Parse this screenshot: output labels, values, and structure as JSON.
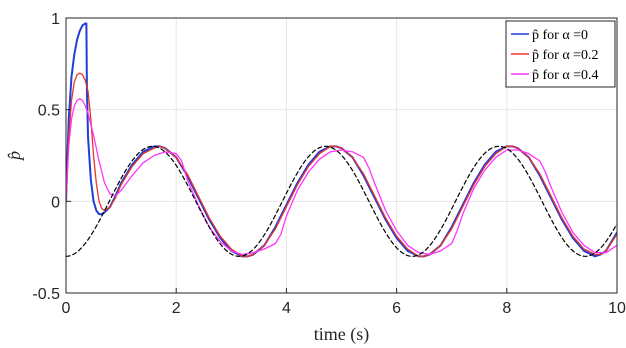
{
  "chart_data": {
    "type": "line",
    "xlabel": "time (s)",
    "ylabel": "p̂",
    "xlim": [
      0,
      10
    ],
    "ylim": [
      -0.5,
      1
    ],
    "xticks": [
      0,
      2,
      4,
      6,
      8,
      10
    ],
    "yticks": [
      -0.5,
      0,
      0.5,
      1
    ],
    "xtick_labels": [
      "0",
      "2",
      "4",
      "6",
      "8",
      "10"
    ],
    "ytick_labels": [
      "-0.5",
      "0",
      "0.5",
      "1"
    ],
    "grid": true,
    "legend_position": "top-right",
    "series": [
      {
        "name": "p̂ for α =0",
        "legend_label": "p̂ for α =0",
        "color": "#1f3fd6",
        "style": "solid",
        "points": [
          [
            0,
            0
          ],
          [
            0.05,
            0.45
          ],
          [
            0.1,
            0.68
          ],
          [
            0.15,
            0.8
          ],
          [
            0.2,
            0.88
          ],
          [
            0.25,
            0.93
          ],
          [
            0.3,
            0.96
          ],
          [
            0.35,
            0.97
          ],
          [
            0.37,
            0.97
          ],
          [
            0.38,
            0.6
          ],
          [
            0.4,
            0.35
          ],
          [
            0.45,
            0.12
          ],
          [
            0.5,
            0.0
          ],
          [
            0.55,
            -0.05
          ],
          [
            0.6,
            -0.07
          ],
          [
            0.65,
            -0.07
          ],
          [
            0.7,
            -0.06
          ],
          [
            0.8,
            -0.03
          ],
          [
            0.9,
            0.03
          ],
          [
            1.0,
            0.1
          ],
          [
            1.2,
            0.2
          ],
          [
            1.4,
            0.27
          ],
          [
            1.6,
            0.3
          ],
          [
            1.7,
            0.3
          ],
          [
            1.8,
            0.29
          ],
          [
            2.0,
            0.24
          ],
          [
            2.2,
            0.14
          ],
          [
            2.4,
            0.02
          ],
          [
            2.6,
            -0.1
          ],
          [
            2.8,
            -0.2
          ],
          [
            3.0,
            -0.27
          ],
          [
            3.2,
            -0.3
          ],
          [
            3.3,
            -0.3
          ],
          [
            3.4,
            -0.29
          ],
          [
            3.6,
            -0.24
          ],
          [
            3.8,
            -0.14
          ],
          [
            4.0,
            -0.02
          ],
          [
            4.2,
            0.1
          ],
          [
            4.4,
            0.2
          ],
          [
            4.6,
            0.27
          ],
          [
            4.8,
            0.3
          ],
          [
            4.9,
            0.3
          ],
          [
            5.0,
            0.29
          ],
          [
            5.2,
            0.24
          ],
          [
            5.4,
            0.14
          ],
          [
            5.6,
            0.02
          ],
          [
            5.8,
            -0.1
          ],
          [
            6.0,
            -0.2
          ],
          [
            6.2,
            -0.27
          ],
          [
            6.4,
            -0.3
          ],
          [
            6.5,
            -0.3
          ],
          [
            6.6,
            -0.29
          ],
          [
            6.8,
            -0.24
          ],
          [
            7.0,
            -0.14
          ],
          [
            7.2,
            -0.02
          ],
          [
            7.4,
            0.1
          ],
          [
            7.6,
            0.2
          ],
          [
            7.8,
            0.27
          ],
          [
            8.0,
            0.3
          ],
          [
            8.1,
            0.3
          ],
          [
            8.2,
            0.29
          ],
          [
            8.4,
            0.24
          ],
          [
            8.6,
            0.14
          ],
          [
            8.8,
            0.02
          ],
          [
            9.0,
            -0.1
          ],
          [
            9.2,
            -0.2
          ],
          [
            9.4,
            -0.27
          ],
          [
            9.6,
            -0.3
          ],
          [
            9.7,
            -0.29
          ],
          [
            9.8,
            -0.27
          ],
          [
            10.0,
            -0.17
          ]
        ]
      },
      {
        "name": "p̂ for α =0.2",
        "legend_label": "p̂ for α =0.2",
        "color": "#e8342a",
        "style": "solid",
        "points": [
          [
            0,
            0
          ],
          [
            0.05,
            0.35
          ],
          [
            0.1,
            0.55
          ],
          [
            0.15,
            0.65
          ],
          [
            0.2,
            0.69
          ],
          [
            0.25,
            0.7
          ],
          [
            0.3,
            0.69
          ],
          [
            0.35,
            0.66
          ],
          [
            0.4,
            0.6
          ],
          [
            0.45,
            0.45
          ],
          [
            0.5,
            0.25
          ],
          [
            0.55,
            0.1
          ],
          [
            0.6,
            0.0
          ],
          [
            0.65,
            -0.04
          ],
          [
            0.7,
            -0.05
          ],
          [
            0.8,
            -0.03
          ],
          [
            0.9,
            0.02
          ],
          [
            1.0,
            0.09
          ],
          [
            1.2,
            0.19
          ],
          [
            1.4,
            0.26
          ],
          [
            1.6,
            0.29
          ],
          [
            1.7,
            0.3
          ],
          [
            1.8,
            0.29
          ],
          [
            2.0,
            0.24
          ],
          [
            2.2,
            0.15
          ],
          [
            2.4,
            0.03
          ],
          [
            2.6,
            -0.09
          ],
          [
            2.8,
            -0.19
          ],
          [
            3.0,
            -0.26
          ],
          [
            3.2,
            -0.3
          ],
          [
            3.3,
            -0.3
          ],
          [
            3.4,
            -0.29
          ],
          [
            3.6,
            -0.24
          ],
          [
            3.8,
            -0.15
          ],
          [
            4.0,
            -0.03
          ],
          [
            4.2,
            0.09
          ],
          [
            4.4,
            0.19
          ],
          [
            4.6,
            0.26
          ],
          [
            4.8,
            0.3
          ],
          [
            4.9,
            0.3
          ],
          [
            5.0,
            0.29
          ],
          [
            5.2,
            0.24
          ],
          [
            5.4,
            0.15
          ],
          [
            5.6,
            0.03
          ],
          [
            5.8,
            -0.09
          ],
          [
            6.0,
            -0.19
          ],
          [
            6.2,
            -0.26
          ],
          [
            6.4,
            -0.3
          ],
          [
            6.5,
            -0.3
          ],
          [
            6.6,
            -0.29
          ],
          [
            6.8,
            -0.24
          ],
          [
            7.0,
            -0.15
          ],
          [
            7.2,
            -0.03
          ],
          [
            7.4,
            0.09
          ],
          [
            7.6,
            0.19
          ],
          [
            7.8,
            0.26
          ],
          [
            8.0,
            0.3
          ],
          [
            8.1,
            0.3
          ],
          [
            8.2,
            0.29
          ],
          [
            8.4,
            0.24
          ],
          [
            8.6,
            0.15
          ],
          [
            8.8,
            0.03
          ],
          [
            9.0,
            -0.09
          ],
          [
            9.2,
            -0.19
          ],
          [
            9.4,
            -0.26
          ],
          [
            9.6,
            -0.29
          ],
          [
            9.7,
            -0.29
          ],
          [
            9.8,
            -0.27
          ],
          [
            10.0,
            -0.18
          ]
        ]
      },
      {
        "name": "p̂ for α =0.4",
        "legend_label": "p̂ for α =0.4",
        "color": "#ff33ff",
        "style": "solid",
        "points": [
          [
            0,
            0
          ],
          [
            0.05,
            0.3
          ],
          [
            0.1,
            0.45
          ],
          [
            0.15,
            0.52
          ],
          [
            0.2,
            0.55
          ],
          [
            0.25,
            0.56
          ],
          [
            0.3,
            0.55
          ],
          [
            0.35,
            0.52
          ],
          [
            0.4,
            0.48
          ],
          [
            0.5,
            0.36
          ],
          [
            0.6,
            0.22
          ],
          [
            0.7,
            0.1
          ],
          [
            0.8,
            0.04
          ],
          [
            0.9,
            0.03
          ],
          [
            1.0,
            0.06
          ],
          [
            1.2,
            0.14
          ],
          [
            1.4,
            0.21
          ],
          [
            1.6,
            0.25
          ],
          [
            1.8,
            0.27
          ],
          [
            2.0,
            0.26
          ],
          [
            2.1,
            0.22
          ],
          [
            2.2,
            0.12
          ],
          [
            2.4,
            -0.02
          ],
          [
            2.6,
            -0.14
          ],
          [
            2.8,
            -0.22
          ],
          [
            3.0,
            -0.27
          ],
          [
            3.2,
            -0.29
          ],
          [
            3.4,
            -0.28
          ],
          [
            3.6,
            -0.26
          ],
          [
            3.8,
            -0.23
          ],
          [
            3.9,
            -0.18
          ],
          [
            4.0,
            -0.08
          ],
          [
            4.2,
            0.06
          ],
          [
            4.4,
            0.16
          ],
          [
            4.6,
            0.23
          ],
          [
            4.8,
            0.27
          ],
          [
            5.0,
            0.28
          ],
          [
            5.2,
            0.27
          ],
          [
            5.4,
            0.24
          ],
          [
            5.5,
            0.18
          ],
          [
            5.6,
            0.1
          ],
          [
            5.8,
            -0.05
          ],
          [
            6.0,
            -0.16
          ],
          [
            6.2,
            -0.24
          ],
          [
            6.4,
            -0.28
          ],
          [
            6.6,
            -0.29
          ],
          [
            6.8,
            -0.27
          ],
          [
            7.0,
            -0.23
          ],
          [
            7.1,
            -0.16
          ],
          [
            7.2,
            -0.07
          ],
          [
            7.4,
            0.07
          ],
          [
            7.6,
            0.17
          ],
          [
            7.8,
            0.24
          ],
          [
            8.0,
            0.28
          ],
          [
            8.2,
            0.28
          ],
          [
            8.4,
            0.26
          ],
          [
            8.6,
            0.22
          ],
          [
            8.7,
            0.16
          ],
          [
            8.8,
            0.08
          ],
          [
            9.0,
            -0.06
          ],
          [
            9.2,
            -0.17
          ],
          [
            9.4,
            -0.24
          ],
          [
            9.6,
            -0.28
          ],
          [
            9.8,
            -0.28
          ],
          [
            10.0,
            -0.24
          ]
        ]
      },
      {
        "name": "",
        "color": "#000000",
        "style": "dashed",
        "function": "-0.3*cos(2*x)",
        "amplitude": 0.3,
        "angular_frequency": 2
      }
    ]
  }
}
